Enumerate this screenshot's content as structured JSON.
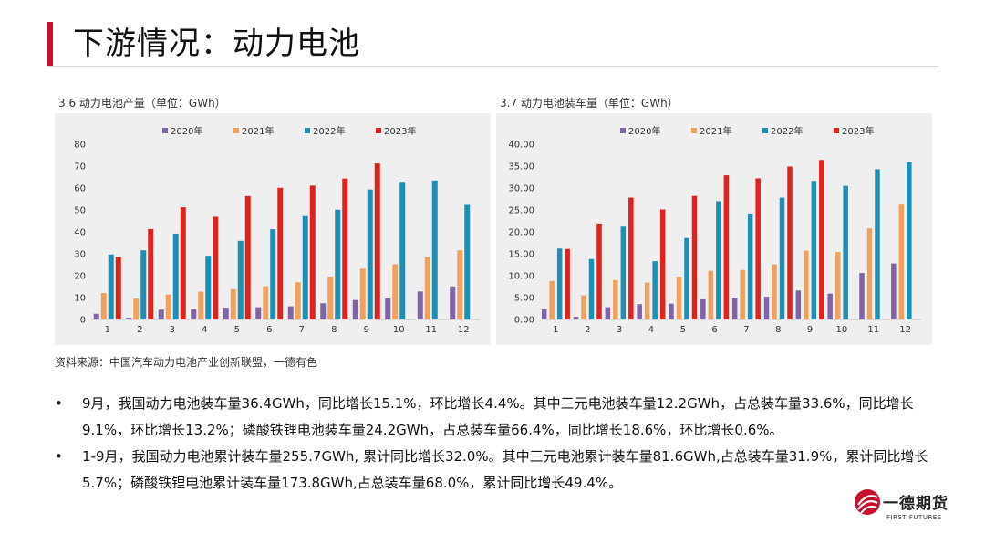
{
  "page_title": "下游情况：动力电池",
  "colors": {
    "s2020": "#7e63a6",
    "s2021": "#f2a15c",
    "s2022": "#1b8fb4",
    "s2023": "#e0221f",
    "accent": "#c8102e"
  },
  "chart_data": [
    {
      "type": "bar",
      "title": "3.6 动力电池产量（单位：GWh）",
      "categories": [
        "1",
        "2",
        "3",
        "4",
        "5",
        "6",
        "7",
        "8",
        "9",
        "10",
        "11",
        "12"
      ],
      "ylim": [
        0,
        80
      ],
      "yticks": [
        "0",
        "10",
        "20",
        "30",
        "40",
        "50",
        "60",
        "70",
        "80"
      ],
      "legend_position": "top",
      "grid": false,
      "series": [
        {
          "name": "2020年",
          "values": [
            2.6,
            0.8,
            4.5,
            4.7,
            5.4,
            5.6,
            6.0,
            7.4,
            8.9,
            9.6,
            12.8,
            15.1
          ]
        },
        {
          "name": "2021年",
          "values": [
            12.1,
            9.5,
            11.4,
            12.7,
            13.8,
            15.2,
            17.0,
            19.6,
            23.2,
            25.2,
            28.4,
            31.6
          ]
        },
        {
          "name": "2022年",
          "values": [
            29.7,
            31.6,
            39.2,
            29.1,
            35.9,
            41.2,
            47.2,
            50.1,
            59.3,
            62.8,
            63.4,
            52.3
          ]
        },
        {
          "name": "2023年",
          "values": [
            28.6,
            41.3,
            51.2,
            46.9,
            56.3,
            60.1,
            61.1,
            64.3,
            71.2,
            null,
            null,
            null
          ]
        }
      ]
    },
    {
      "type": "bar",
      "title": "3.7 动力电池装车量（单位：GWh）",
      "categories": [
        "1",
        "2",
        "3",
        "4",
        "5",
        "6",
        "7",
        "8",
        "9",
        "10",
        "11",
        "12"
      ],
      "ylim": [
        0,
        40
      ],
      "yticks": [
        "0.00",
        "5.00",
        "10.00",
        "15.00",
        "20.00",
        "25.00",
        "30.00",
        "35.00",
        "40.00"
      ],
      "legend_position": "top",
      "grid": false,
      "series": [
        {
          "name": "2020年",
          "values": [
            2.3,
            0.6,
            2.8,
            3.5,
            3.6,
            4.6,
            5.0,
            5.2,
            6.6,
            5.9,
            10.6,
            12.8
          ]
        },
        {
          "name": "2021年",
          "values": [
            8.8,
            5.5,
            9.0,
            8.4,
            9.8,
            11.1,
            11.3,
            12.6,
            15.7,
            15.4,
            20.8,
            26.2
          ]
        },
        {
          "name": "2022年",
          "values": [
            16.2,
            13.8,
            21.2,
            13.3,
            18.6,
            27.0,
            24.2,
            27.8,
            31.6,
            30.5,
            34.3,
            35.9
          ]
        },
        {
          "name": "2023年",
          "values": [
            16.1,
            21.9,
            27.8,
            25.1,
            28.2,
            32.9,
            32.2,
            34.9,
            36.4,
            null,
            null,
            null
          ]
        }
      ]
    }
  ],
  "source": "资料来源：中国汽车动力电池产业创新联盟，一德有色",
  "bullet_symbol": "•",
  "bullets": [
    "9月，我国动力电池装车量36.4GWh，同比增长15.1%，环比增长4.4%。其中三元电池装车量12.2GWh，占总装车量33.6%，同比增长9.1%，环比增长13.2%；磷酸铁锂电池装车量24.2GWh，占总装车量66.4%，同比增长18.6%，环比增长0.6%。",
    "1-9月，我国动力电池累计装车量255.7GWh, 累计同比增长32.0%。其中三元电池累计装车量81.6GWh,占总装车量31.9%，累计同比增长5.7%；磷酸铁锂电池累计装车量173.8GWh,占总装车量68.0%，累计同比增长49.4%。"
  ],
  "logo": {
    "name": "一德期货",
    "en": "FIRST FUTURES",
    "icon": "company-logo-icon"
  }
}
